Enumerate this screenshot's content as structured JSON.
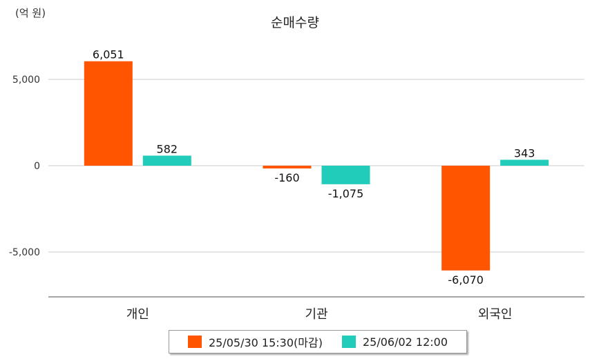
{
  "chart_data": {
    "type": "bar",
    "title": "순매수량",
    "unit_label": "(억 원)",
    "categories": [
      "개인",
      "기관",
      "외국인"
    ],
    "series": [
      {
        "name": "25/05/30 15:30(마감)",
        "color": "#ff5500",
        "values": [
          6051,
          -160,
          -6070
        ],
        "labels": [
          "6,051",
          "-160",
          "-6,070"
        ]
      },
      {
        "name": "25/06/02 12:00",
        "color": "#22ccbb",
        "values": [
          582,
          -1075,
          343
        ],
        "labels": [
          "582",
          "-1,075",
          "343"
        ]
      }
    ],
    "yticks": [
      5000,
      0,
      -5000
    ],
    "ytick_labels": [
      "5,000",
      "0",
      "-5,000"
    ],
    "ylim": [
      -7600,
      7200
    ],
    "grid": true,
    "legend_position": "bottom"
  }
}
